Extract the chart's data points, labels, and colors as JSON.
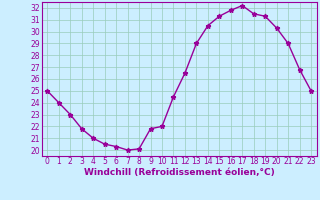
{
  "x": [
    0,
    1,
    2,
    3,
    4,
    5,
    6,
    7,
    8,
    9,
    10,
    11,
    12,
    13,
    14,
    15,
    16,
    17,
    18,
    19,
    20,
    21,
    22,
    23
  ],
  "y": [
    25.0,
    24.0,
    23.0,
    21.8,
    21.0,
    20.5,
    20.3,
    20.0,
    20.1,
    21.8,
    22.0,
    24.5,
    26.5,
    29.0,
    30.5,
    31.3,
    31.8,
    32.2,
    31.5,
    31.3,
    30.3,
    29.0,
    26.8,
    25.0
  ],
  "line_color": "#990099",
  "marker": "*",
  "marker_size": 3.5,
  "xlim": [
    -0.5,
    23.5
  ],
  "ylim": [
    19.5,
    32.5
  ],
  "yticks": [
    20,
    21,
    22,
    23,
    24,
    25,
    26,
    27,
    28,
    29,
    30,
    31,
    32
  ],
  "xticks": [
    0,
    1,
    2,
    3,
    4,
    5,
    6,
    7,
    8,
    9,
    10,
    11,
    12,
    13,
    14,
    15,
    16,
    17,
    18,
    19,
    20,
    21,
    22,
    23
  ],
  "xlabel": "Windchill (Refroidissement éolien,°C)",
  "background_color": "#cceeff",
  "grid_color": "#aaddcc",
  "tick_label_fontsize": 5.5,
  "xlabel_fontsize": 6.5,
  "line_width": 1.0
}
